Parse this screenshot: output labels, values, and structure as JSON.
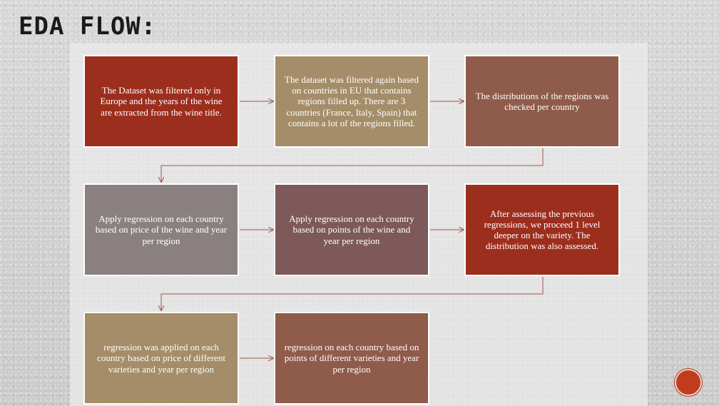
{
  "slide": {
    "title": "EDA FLOW:"
  },
  "flow": {
    "steps": [
      "The Dataset was filtered only in Europe and the years of the wine are extracted from the wine title.",
      "The dataset was filtered again based on countries in EU that contains regions filled up. There are 3 countries (France, Italy, Spain) that contains a lot of the regions filled.",
      "The distributions of the regions was checked per country",
      "Apply regression on each country based on price of the wine and year per region",
      "Apply regression on each country based on points of the wine and year per region",
      "After assessing the previous regressions, we proceed 1 level deeper on the variety. The distribution was also assessed.",
      "regression was applied on each country based on price of different varieties and year per region",
      "regression on each country based on points of different varieties and year per region"
    ]
  },
  "colors": {
    "red": "#9c2e1e",
    "khaki": "#a48d68",
    "brown": "#8f5b4a",
    "grey": "#8a8080",
    "plum": "#7d5959",
    "connector": "#a0564a"
  },
  "icons": {
    "next": "next-slide-icon"
  }
}
